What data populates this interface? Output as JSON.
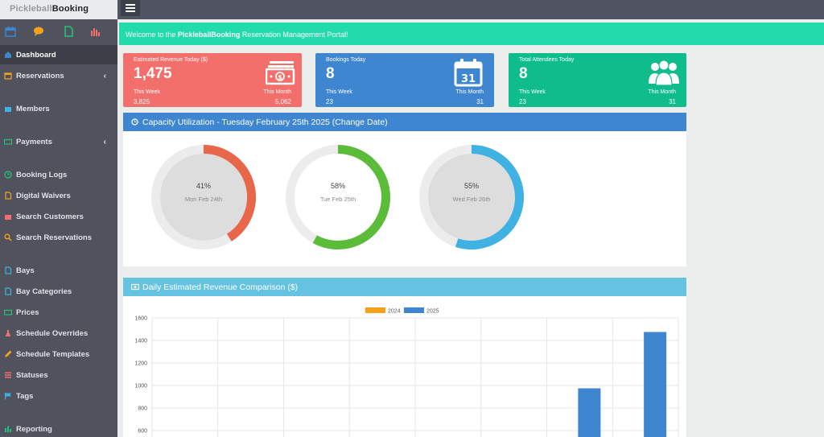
{
  "logo": {
    "part1": "Pickleball",
    "part2": "Booking"
  },
  "welcome": {
    "prefix": "Welcome to the ",
    "brand": "PickleballBooking",
    "suffix": " Reservation Management Portal!"
  },
  "sidebar": {
    "quick_icons": [
      "calendar-icon",
      "chat-icon",
      "document-icon",
      "bar-chart-icon"
    ],
    "items": [
      {
        "label": "Dashboard",
        "icon": "home-icon",
        "active": true
      },
      {
        "label": "Reservations",
        "icon": "calendar-icon",
        "chevron": true
      },
      {
        "label": "Members",
        "icon": "group-icon"
      },
      {
        "label": "Payments",
        "icon": "money-icon",
        "chevron": true
      },
      {
        "label": "Booking Logs",
        "icon": "clock-icon"
      },
      {
        "label": "Digital Waivers",
        "icon": "document-icon"
      },
      {
        "label": "Search Customers",
        "icon": "users-search-icon"
      },
      {
        "label": "Search Reservations",
        "icon": "search-icon"
      },
      {
        "label": "Bays",
        "icon": "file-icon"
      },
      {
        "label": "Bay Categories",
        "icon": "file-icon"
      },
      {
        "label": "Prices",
        "icon": "money-icon"
      },
      {
        "label": "Schedule Overrides",
        "icon": "flask-icon"
      },
      {
        "label": "Schedule Templates",
        "icon": "pencil-icon"
      },
      {
        "label": "Statuses",
        "icon": "list-icon"
      },
      {
        "label": "Tags",
        "icon": "flag-icon"
      },
      {
        "label": "Reporting",
        "icon": "bar-chart-icon"
      }
    ]
  },
  "stats": [
    {
      "label": "Estimated Revenue Today ($)",
      "value": "1,475",
      "week_label": "This Week",
      "week_value": "3,825",
      "month_label": "This Month",
      "month_value": "5,062",
      "color": "#f36f6c",
      "icon": "money-bill-icon"
    },
    {
      "label": "Bookings Today",
      "value": "8",
      "week_label": "This Week",
      "week_value": "23",
      "month_label": "This Month",
      "month_value": "31",
      "color": "#3f86d0",
      "icon": "calendar-31-icon",
      "calendar_number": "31"
    },
    {
      "label": "Total Attendees Today",
      "value": "8",
      "week_label": "This Week",
      "week_value": "23",
      "month_label": "This Month",
      "month_value": "31",
      "color": "#0fbc8c",
      "icon": "users-icon"
    }
  ],
  "capacity": {
    "title": "Capacity Utilization - Tuesday February 25th 2025  (Change Date)",
    "header_color": "#3f86d0",
    "days": [
      {
        "percent_label": "41%",
        "percent": 41,
        "day": "Mon Feb 24th",
        "color": "#e8664a",
        "filled": true
      },
      {
        "percent_label": "58%",
        "percent": 58,
        "day": "Tue Feb 25th",
        "color": "#5bbc3a",
        "filled": false
      },
      {
        "percent_label": "55%",
        "percent": 55,
        "day": "Wed Feb 26th",
        "color": "#3fb1e2",
        "filled": true
      }
    ]
  },
  "revenue": {
    "title": "Daily Estimated Revenue Comparison ($)",
    "header_color": "#64c3e0"
  },
  "chart_data": {
    "type": "bar",
    "series": [
      {
        "name": "2024",
        "color": "#f4a21c",
        "values": [
          0,
          0,
          0,
          0,
          0,
          0,
          0,
          0
        ]
      },
      {
        "name": "2025",
        "color": "#3f86d0",
        "values": [
          0,
          0,
          0,
          0,
          0,
          0,
          975,
          1475
        ]
      }
    ],
    "ylim": [
      0,
      1600
    ],
    "yticks": [
      600,
      800,
      1000,
      1200,
      1400,
      1600
    ],
    "grid": true,
    "legend": "top-center"
  }
}
